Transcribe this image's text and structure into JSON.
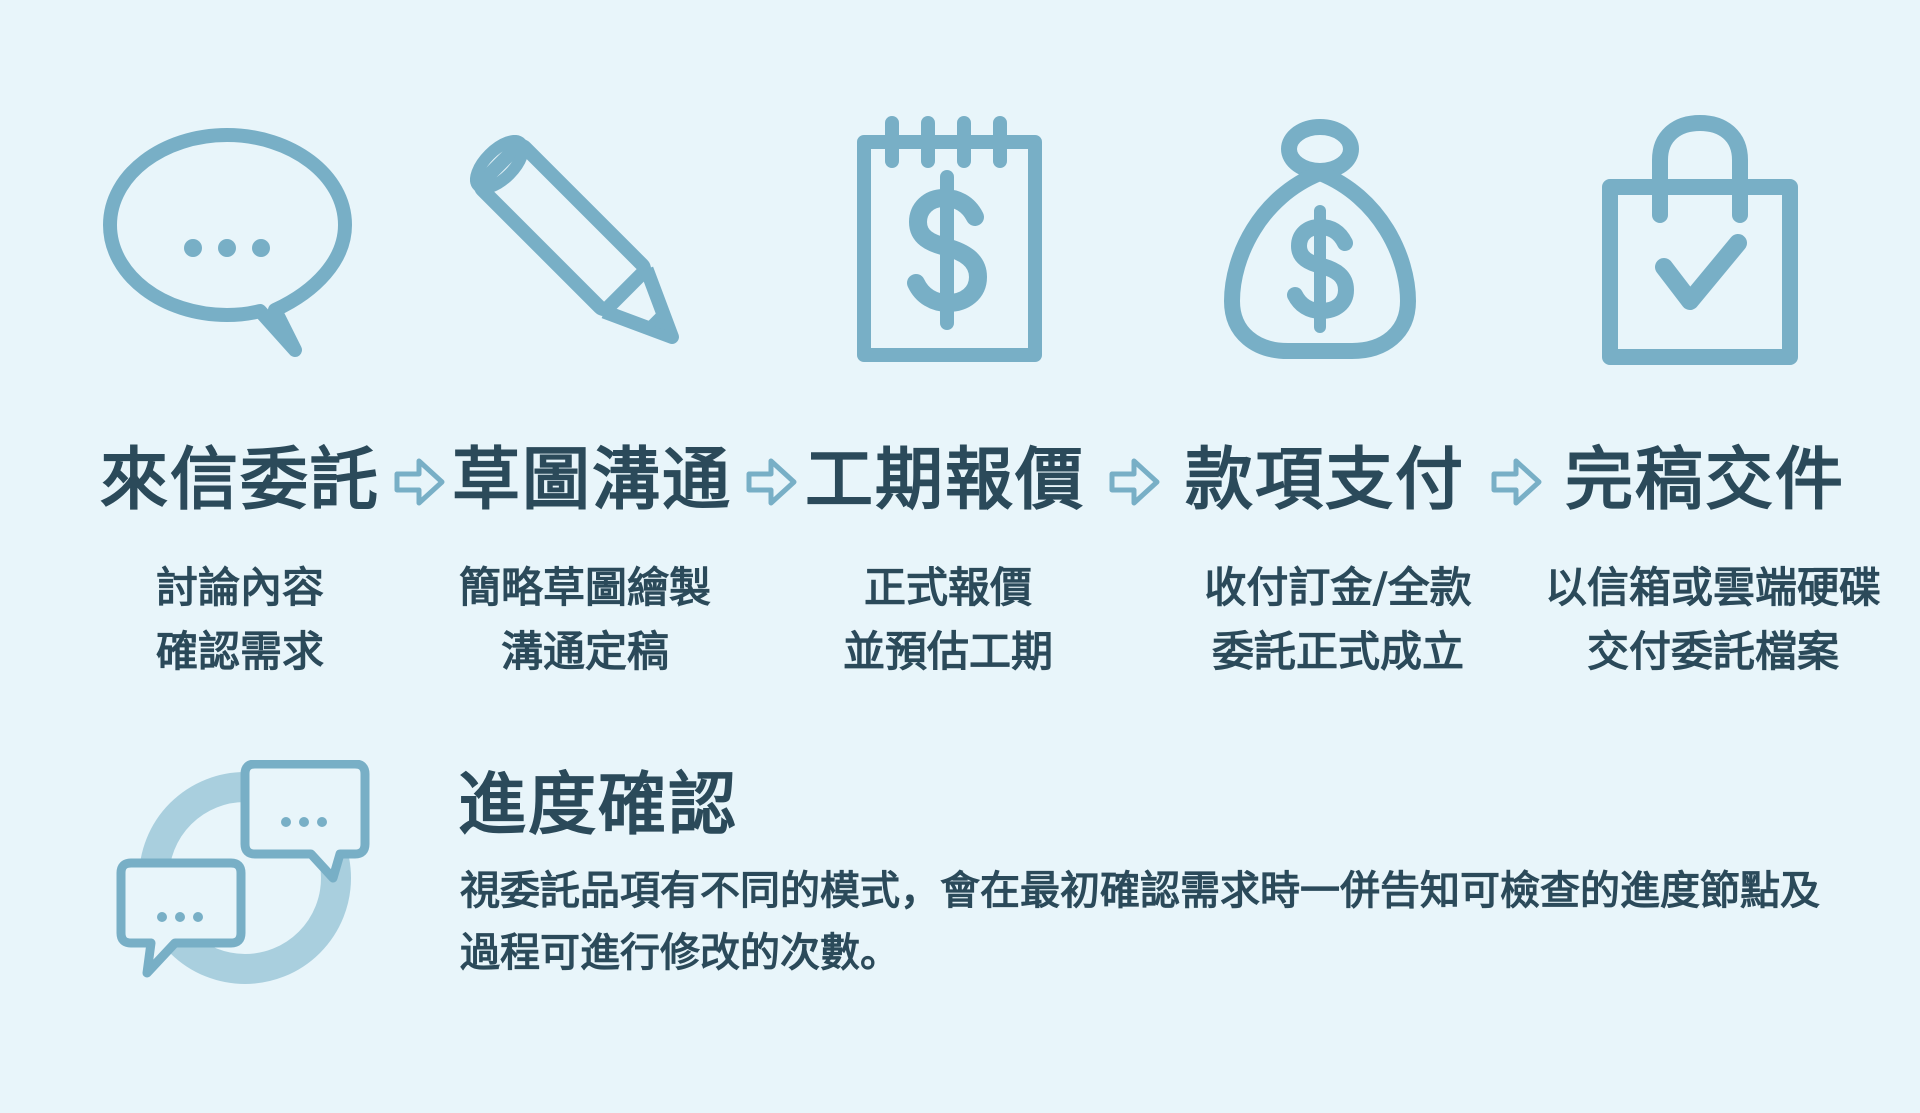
{
  "steps": [
    {
      "icon": "chat-bubble-icon",
      "title": "來信委託",
      "desc": [
        "討論內容",
        "確認需求"
      ]
    },
    {
      "icon": "pencil-icon",
      "title": "草圖溝通",
      "desc": [
        "簡略草圖繪製",
        "溝通定稿"
      ]
    },
    {
      "icon": "notepad-dollar-icon",
      "title": "工期報價",
      "desc": [
        "正式報價",
        "並預估工期"
      ]
    },
    {
      "icon": "money-bag-icon",
      "title": "款項支付",
      "desc": [
        "收付訂金/全款",
        "委託正式成立"
      ]
    },
    {
      "icon": "bag-check-icon",
      "title": "完稿交件",
      "desc": [
        "以信箱或雲端硬碟",
        "交付委託檔案"
      ]
    }
  ],
  "progress": {
    "icon": "chat-exchange-icon",
    "title": "進度確認",
    "body": [
      "視委託品項有不同的模式，會在最初確認需求時一併告知可檢查的進度節點及",
      "過程可進行修改的次數。"
    ]
  },
  "colors": {
    "background": "#e8f5fa",
    "icon": "#78afc6",
    "icon_light": "#a9cfde",
    "text": "#2b4a5a"
  }
}
